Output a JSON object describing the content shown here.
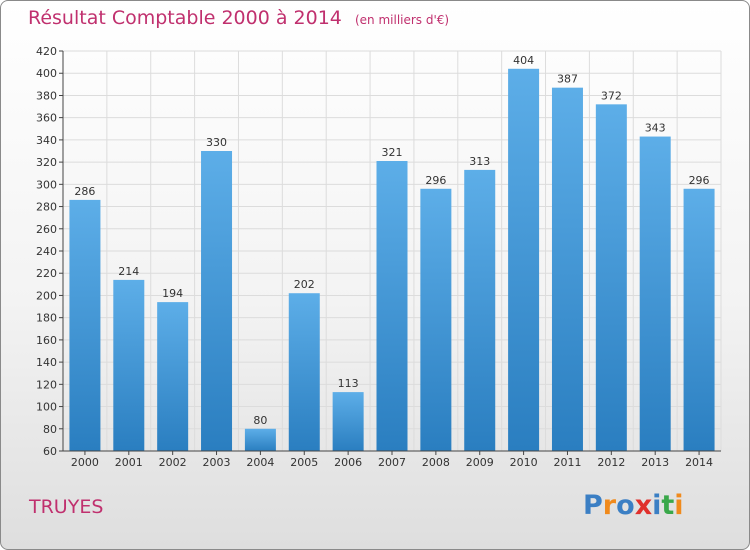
{
  "title": "Résultat Comptable 2000 à 2014",
  "subtitle": "(en milliers d'€)",
  "commune": "TRUYES",
  "logo": {
    "text": "Proxiti",
    "letters": [
      {
        "ch": "P",
        "color": "#3b7fc4"
      },
      {
        "ch": "r",
        "color": "#f08a1c"
      },
      {
        "ch": "o",
        "color": "#3b7fc4"
      },
      {
        "ch": "x",
        "color": "#e0302c"
      },
      {
        "ch": "i",
        "color": "#3b7fc4"
      },
      {
        "ch": "t",
        "color": "#3aa84a"
      },
      {
        "ch": "i",
        "color": "#f08a1c"
      }
    ]
  },
  "chart_data": {
    "type": "bar",
    "title": "Résultat Comptable 2000 à 2014",
    "xlabel": "",
    "ylabel": "",
    "categories": [
      "2000",
      "2001",
      "2002",
      "2003",
      "2004",
      "2005",
      "2006",
      "2007",
      "2008",
      "2009",
      "2010",
      "2011",
      "2012",
      "2013",
      "2014"
    ],
    "values": [
      286,
      214,
      194,
      330,
      80,
      202,
      113,
      321,
      296,
      313,
      404,
      387,
      372,
      343,
      296
    ],
    "ylim": [
      60,
      420
    ],
    "yticks": [
      60,
      80,
      100,
      120,
      140,
      160,
      180,
      200,
      220,
      240,
      260,
      280,
      300,
      320,
      340,
      360,
      380,
      400,
      420
    ],
    "grid": true,
    "data_labels": true,
    "bar_color_top": "#5daee8",
    "bar_color_bottom": "#2a7ec0",
    "grid_color": "#dcdcdc"
  }
}
